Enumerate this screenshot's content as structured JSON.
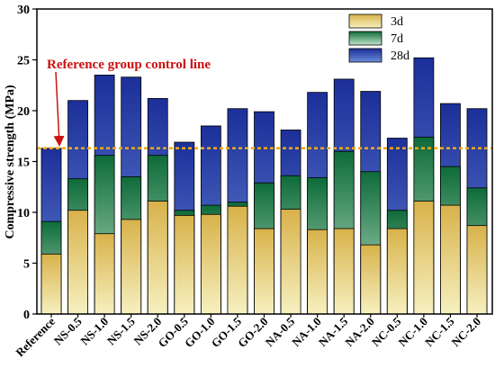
{
  "chart_data": {
    "type": "bar",
    "ylabel": "Compressive strength (MPa)",
    "xlabel": "",
    "ylim": [
      0,
      30
    ],
    "yticks": [
      0,
      5,
      10,
      15,
      20,
      25,
      30
    ],
    "categories": [
      "Reference",
      "NS-0.5",
      "NS-1.0",
      "NS-1.5",
      "NS-2.0",
      "GO-0.5",
      "GO-1.0",
      "GO-1.5",
      "GO-2.0",
      "NA-0.5",
      "NA-1.0",
      "NA-1.5",
      "NA-2.0",
      "NC-0.5",
      "NC-1.0",
      "NC-1.5",
      "NC-2.0"
    ],
    "series": [
      {
        "name": "3d",
        "values": [
          5.9,
          10.2,
          7.9,
          9.3,
          11.1,
          9.7,
          9.8,
          10.6,
          8.4,
          10.3,
          8.3,
          8.4,
          6.8,
          8.4,
          11.1,
          10.7,
          8.7
        ]
      },
      {
        "name": "7d",
        "values": [
          9.1,
          13.3,
          15.6,
          13.5,
          15.6,
          10.2,
          10.7,
          11.0,
          12.9,
          13.6,
          13.4,
          16.0,
          14.0,
          10.2,
          17.4,
          14.5,
          12.4
        ]
      },
      {
        "name": "28d",
        "values": [
          16.3,
          21.0,
          23.5,
          23.3,
          21.2,
          16.9,
          18.5,
          20.2,
          19.9,
          18.1,
          21.8,
          23.1,
          21.9,
          17.3,
          25.2,
          20.7,
          20.2
        ]
      }
    ],
    "reference_line": {
      "value": 16.3,
      "label": "Reference group control line"
    },
    "legend": {
      "position": "top-right"
    },
    "grid": false,
    "colors": {
      "3d_top": "#d8b24a",
      "3d_bottom": "#f6f0c0",
      "7d_top": "#0e6b3a",
      "7d_bottom": "#c2e6cc",
      "28d_top": "#1c2f9a",
      "28d_bottom": "#6b8bd8",
      "reference_line": "#f0a818",
      "annotation": "#cc1111"
    }
  }
}
